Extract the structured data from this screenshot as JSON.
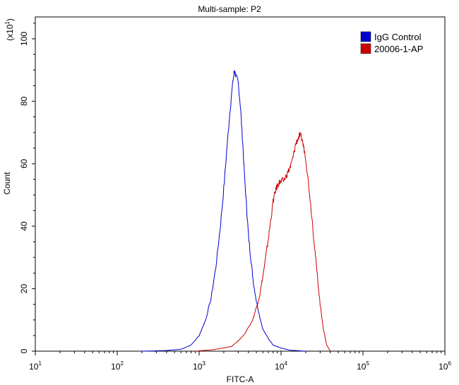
{
  "chart_data": {
    "type": "line",
    "title": "Multi-sample: P2",
    "xlabel": "FITC-A",
    "ylabel": "Count",
    "y_multiplier": "(x10",
    "y_multiplier_exp": "1",
    "y_multiplier_close": ")",
    "x_scale": "log",
    "xlim": [
      10,
      1000000
    ],
    "ylim": [
      0,
      107
    ],
    "x_ticks": [
      {
        "value": 10,
        "base": "10",
        "exp": "1"
      },
      {
        "value": 100,
        "base": "10",
        "exp": "2"
      },
      {
        "value": 1000,
        "base": "10",
        "exp": "3"
      },
      {
        "value": 10000,
        "base": "10",
        "exp": "4"
      },
      {
        "value": 100000,
        "base": "10",
        "exp": "5"
      },
      {
        "value": 1000000,
        "base": "10",
        "exp": "6"
      }
    ],
    "y_ticks": [
      "0",
      "20",
      "40",
      "60",
      "80",
      "100"
    ],
    "y_tick_values": [
      0,
      20,
      40,
      60,
      80,
      100
    ],
    "legend": {
      "position": "top-right"
    },
    "grid": false,
    "series": [
      {
        "name": "IgG Control",
        "color": "#0000cc",
        "x": [
          200,
          400,
          600,
          800,
          1000,
          1200,
          1400,
          1600,
          1800,
          2000,
          2200,
          2400,
          2600,
          2700,
          2800,
          3000,
          3200,
          3400,
          3600,
          3800,
          4000,
          4300,
          4600,
          5000,
          5500,
          6000,
          7000,
          8000,
          10000,
          13000,
          20000
        ],
        "y": [
          0,
          0.2,
          0.6,
          2,
          5,
          10,
          17,
          27,
          39,
          52,
          66,
          78,
          87,
          90,
          88,
          86,
          78,
          67,
          55,
          46,
          37,
          29,
          22,
          16,
          11,
          7,
          4,
          2,
          1,
          0.3,
          0
        ]
      },
      {
        "name": "20006-1-AP",
        "color": "#cc0000",
        "x": [
          900,
          1500,
          2500,
          3500,
          4500,
          5000,
          5500,
          6000,
          6500,
          7000,
          7500,
          8000,
          8500,
          9000,
          9500,
          10000,
          11000,
          12000,
          13000,
          14000,
          15000,
          16000,
          17000,
          18000,
          19000,
          20000,
          22000,
          24000,
          26000,
          28000,
          30000,
          33000,
          36000,
          40000
        ],
        "y": [
          0,
          0.5,
          1.5,
          5,
          10,
          14,
          18,
          24,
          30,
          36,
          42,
          48,
          51,
          53,
          54,
          54,
          55,
          57,
          59,
          62,
          66,
          68,
          69,
          68,
          65,
          62,
          52,
          42,
          32,
          23,
          15,
          7,
          2,
          0
        ]
      }
    ]
  }
}
